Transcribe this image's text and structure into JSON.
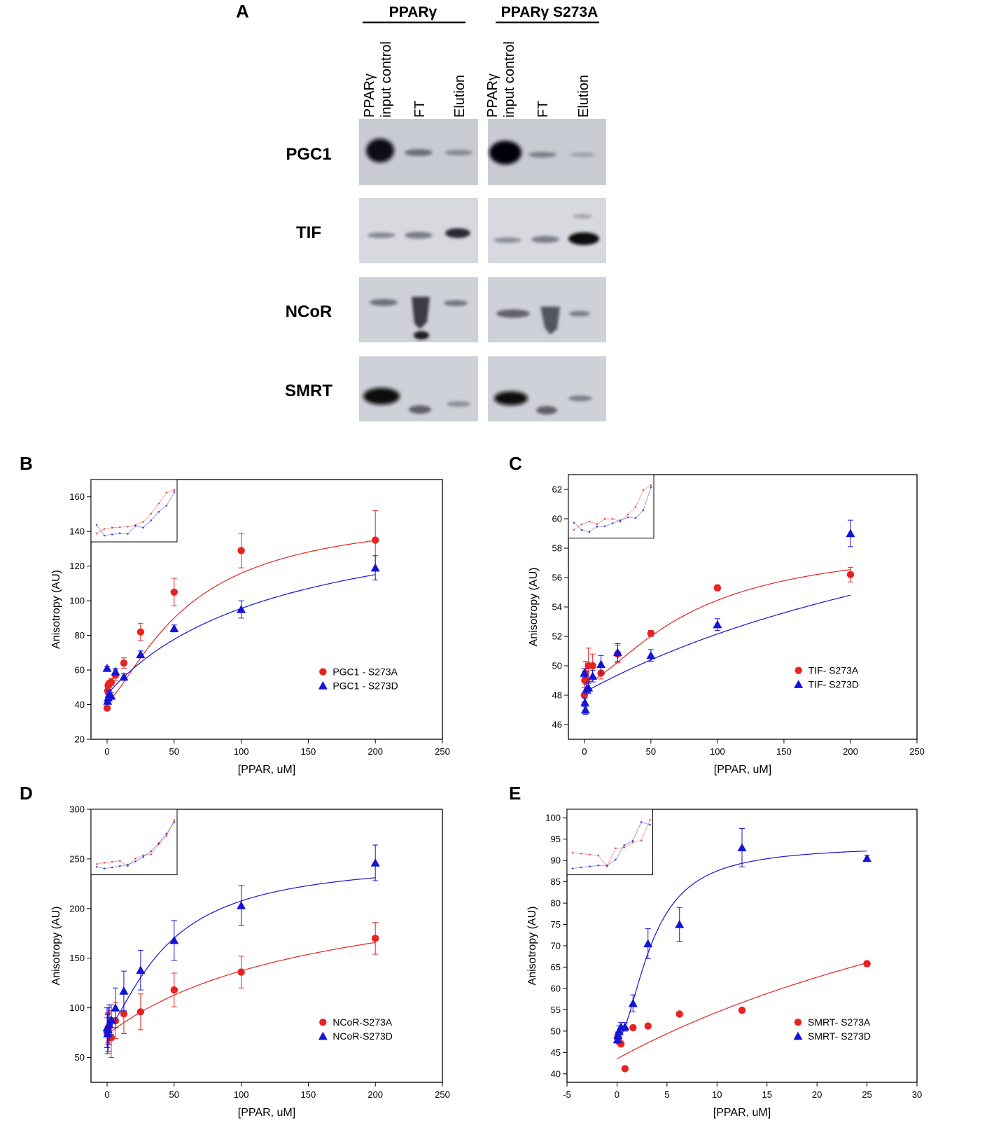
{
  "panel_a": {
    "letter": "A",
    "groups": [
      "PPARγ",
      "PPARγ S273A"
    ],
    "lane_labels": [
      "PPARγ",
      "input control",
      "FT",
      "Elution"
    ],
    "rows": [
      "PGC1",
      "TIF",
      "NCoR",
      "SMRT"
    ]
  },
  "colors": {
    "s273a": "#e8231f",
    "s273d": "#1414d6"
  },
  "chart_data": [
    {
      "id": "B",
      "type": "scatter",
      "title": "",
      "xlabel": "[PPAR, uM]",
      "ylabel": "Anisotropy (AU)",
      "xlim": [
        -12,
        250
      ],
      "ylim": [
        20,
        170
      ],
      "xticks": [
        0,
        50,
        100,
        150,
        200,
        250
      ],
      "yticks": [
        20,
        40,
        60,
        80,
        100,
        120,
        140,
        160
      ],
      "legend_position": "center-right",
      "series": [
        {
          "name": "PGC1 - S273A",
          "marker": "circle",
          "color": "#e8231f",
          "x": [
            0,
            0.4,
            0.8,
            1.6,
            3.1,
            6.25,
            12.5,
            25,
            50,
            100,
            200
          ],
          "y": [
            38,
            48,
            51,
            52,
            53,
            57,
            64,
            82,
            105,
            129,
            135
          ],
          "err": [
            1,
            2,
            2,
            2,
            2,
            3,
            3,
            5,
            8,
            10,
            17
          ],
          "fit": {
            "ymin": 42,
            "ymax": 152,
            "k": 60,
            "n": 1.4
          }
        },
        {
          "name": "PGC1 - S273D",
          "marker": "triangle",
          "color": "#1414d6",
          "x": [
            0,
            0.4,
            0.8,
            1.6,
            3.1,
            6.25,
            12.5,
            25,
            50,
            100,
            200
          ],
          "y": [
            61,
            42,
            44,
            46,
            45,
            59,
            56,
            69,
            84,
            95,
            119
          ],
          "err": [
            1,
            1,
            2,
            2,
            2,
            2,
            2,
            2,
            2,
            5,
            7
          ],
          "fit": {
            "ymin": 46,
            "ymax": 160,
            "k": 130,
            "n": 1.0
          }
        }
      ],
      "inset": true
    },
    {
      "id": "C",
      "type": "scatter",
      "title": "",
      "xlabel": "[PPAR, uM]",
      "ylabel": "Anisotropy (AU)",
      "xlim": [
        -12,
        250
      ],
      "ylim": [
        45,
        63
      ],
      "xticks": [
        0,
        50,
        100,
        150,
        200,
        250
      ],
      "yticks": [
        46,
        48,
        50,
        52,
        54,
        56,
        58,
        60,
        62
      ],
      "legend_position": "center-right",
      "series": [
        {
          "name": "TIF- S273A",
          "marker": "circle",
          "color": "#e8231f",
          "x": [
            0,
            0.4,
            0.8,
            1.6,
            3.1,
            6.25,
            12.5,
            25,
            50,
            100,
            200
          ],
          "y": [
            48,
            49,
            49.5,
            49,
            50,
            50,
            49.5,
            50.8,
            52.2,
            55.3,
            56.2
          ],
          "err": [
            0.5,
            0.8,
            0.8,
            0.6,
            1.2,
            0.8,
            0.4,
            0.6,
            0.2,
            0.2,
            0.5
          ],
          "fit": {
            "ymin": 48.8,
            "ymax": 58.5,
            "k": 80,
            "n": 1.5
          }
        },
        {
          "name": "TIF- S273D",
          "marker": "triangle",
          "color": "#1414d6",
          "x": [
            0,
            0.4,
            0.8,
            1.6,
            3.1,
            6.25,
            12.5,
            25,
            50,
            100,
            200
          ],
          "y": [
            49.5,
            47.5,
            47,
            48.4,
            48.5,
            49.3,
            50.1,
            50.9,
            50.7,
            52.8,
            59
          ],
          "err": [
            0.3,
            0.3,
            0.3,
            0.3,
            0.4,
            0.4,
            0.6,
            0.6,
            0.4,
            0.4,
            0.9
          ],
          "fit": {
            "ymin": 48.2,
            "ymax": 68,
            "k": 400,
            "n": 1.0
          }
        }
      ],
      "inset": true
    },
    {
      "id": "D",
      "type": "scatter",
      "title": "",
      "xlabel": "[PPAR, uM]",
      "ylabel": "Anisotropy (AU)",
      "xlim": [
        -12,
        250
      ],
      "ylim": [
        25,
        300
      ],
      "xticks": [
        0,
        50,
        100,
        150,
        200,
        250
      ],
      "yticks": [
        50,
        100,
        150,
        200,
        250,
        300
      ],
      "legend_position": "bottom-right",
      "series": [
        {
          "name": "NCoR-S273A",
          "marker": "circle",
          "color": "#e8231f",
          "x": [
            0,
            0.4,
            0.8,
            1.6,
            3.1,
            6.25,
            12.5,
            25,
            50,
            100,
            200
          ],
          "y": [
            75,
            78,
            80,
            82,
            70,
            87,
            94,
            96,
            118,
            136,
            170
          ],
          "err": [
            15,
            15,
            15,
            15,
            20,
            18,
            20,
            18,
            17,
            16,
            16
          ],
          "fit": {
            "ymin": 73,
            "ymax": 240,
            "k": 160,
            "n": 1.0
          }
        },
        {
          "name": "NCoR-S273D",
          "marker": "triangle",
          "color": "#1414d6",
          "x": [
            0,
            0.4,
            0.8,
            1.6,
            3.1,
            6.25,
            12.5,
            25,
            50,
            100,
            200
          ],
          "y": [
            80,
            74,
            78,
            83,
            88,
            100,
            117,
            138,
            168,
            203,
            246
          ],
          "err": [
            20,
            20,
            22,
            20,
            15,
            20,
            20,
            20,
            20,
            20,
            18
          ],
          "fit": {
            "ymin": 78,
            "ymax": 250,
            "k": 45,
            "n": 1.4
          }
        }
      ],
      "inset": true
    },
    {
      "id": "E",
      "type": "scatter",
      "title": "",
      "xlabel": "[PPAR, uM]",
      "ylabel": "Anisotropy (AU)",
      "xlim": [
        -5,
        30
      ],
      "ylim": [
        38,
        102
      ],
      "xticks": [
        -5,
        0,
        5,
        10,
        15,
        20,
        25,
        30
      ],
      "yticks": [
        40,
        45,
        50,
        55,
        60,
        65,
        70,
        75,
        80,
        85,
        90,
        95,
        100
      ],
      "legend_position": "bottom-right",
      "series": [
        {
          "name": "SMRT- S273A",
          "marker": "circle",
          "color": "#e8231f",
          "x": [
            0.05,
            0.1,
            0.2,
            0.4,
            0.8,
            1.6,
            3.1,
            6.25,
            12.5,
            25
          ],
          "y": [
            48.5,
            48,
            47.5,
            47,
            41.2,
            50.8,
            51.2,
            54,
            54.9,
            65.8
          ],
          "err": [
            0.5,
            0.5,
            0.5,
            0.5,
            0.3,
            0.5,
            0.5,
            0.5,
            0.3,
            0.6
          ],
          "fit": {
            "ymin": 43.5,
            "ymax": 120,
            "k": 60,
            "n": 1.0
          }
        },
        {
          "name": "SMRT- S273D",
          "marker": "triangle",
          "color": "#1414d6",
          "x": [
            0.05,
            0.1,
            0.2,
            0.4,
            0.8,
            1.6,
            3.1,
            6.25,
            12.5,
            25
          ],
          "y": [
            48,
            49,
            50,
            51,
            51,
            56.5,
            70.5,
            75,
            93,
            90.5
          ],
          "err": [
            0.8,
            0.8,
            1.2,
            1,
            1,
            2,
            3.5,
            4,
            4.5,
            0.6
          ],
          "fit": {
            "ymin": 48,
            "ymax": 93.5,
            "k": 3.5,
            "n": 1.8
          }
        }
      ],
      "inset": true
    }
  ]
}
